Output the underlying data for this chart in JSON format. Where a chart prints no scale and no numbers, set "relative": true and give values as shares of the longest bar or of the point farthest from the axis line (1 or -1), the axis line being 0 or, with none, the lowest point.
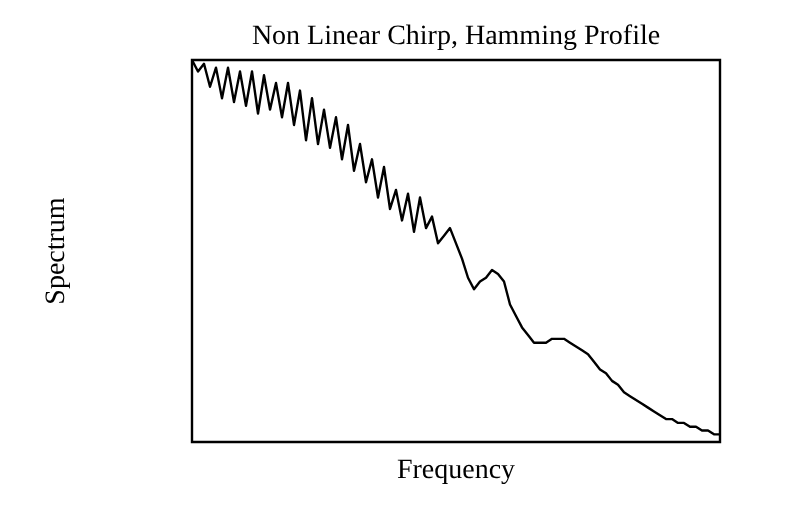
{
  "chart_data": {
    "type": "line",
    "title": "Non Linear Chirp, Hamming Profile",
    "xlabel": "Frequency",
    "ylabel": "Spectrum",
    "relative": true,
    "legend": false,
    "marker": "none",
    "line_style": "solid",
    "categories": [
      null,
      null,
      null,
      null,
      null,
      null,
      null,
      null,
      null,
      null,
      null,
      null,
      null,
      null,
      null,
      null,
      null,
      null,
      null,
      null,
      null,
      null,
      null,
      null,
      null,
      null,
      null,
      null,
      null,
      null,
      null,
      null,
      null,
      null,
      null,
      null,
      null,
      null,
      null,
      null,
      null,
      null,
      null,
      null,
      null,
      null,
      null,
      null,
      null,
      null,
      null,
      null,
      null,
      null,
      null,
      null,
      null,
      null,
      null,
      null,
      null,
      null,
      null,
      null,
      null,
      null,
      null,
      null,
      null,
      null,
      null,
      null,
      null,
      null,
      null,
      null,
      null,
      null,
      null,
      null,
      null,
      null,
      null,
      null,
      null,
      null,
      null,
      null,
      null
    ],
    "series": [
      {
        "color": "#000000",
        "values": [
          1.0,
          0.97,
          0.99,
          0.93,
          0.98,
          0.9,
          0.98,
          0.89,
          0.97,
          0.88,
          0.97,
          0.86,
          0.96,
          0.87,
          0.94,
          0.85,
          0.94,
          0.83,
          0.92,
          0.79,
          0.9,
          0.78,
          0.87,
          0.77,
          0.85,
          0.74,
          0.83,
          0.71,
          0.78,
          0.68,
          0.74,
          0.64,
          0.72,
          0.61,
          0.66,
          0.58,
          0.65,
          0.55,
          0.64,
          0.56,
          0.59,
          0.52,
          0.54,
          0.56,
          0.52,
          0.48,
          0.43,
          0.4,
          0.42,
          0.43,
          0.45,
          0.44,
          0.42,
          0.36,
          0.33,
          0.3,
          0.28,
          0.26,
          0.26,
          0.26,
          0.27,
          0.27,
          0.27,
          0.26,
          0.25,
          0.24,
          0.23,
          0.21,
          0.19,
          0.18,
          0.16,
          0.15,
          0.13,
          0.12,
          0.11,
          0.1,
          0.09,
          0.08,
          0.07,
          0.06,
          0.06,
          0.05,
          0.05,
          0.04,
          0.04,
          0.03,
          0.03,
          0.02,
          0.02
        ]
      }
    ]
  }
}
